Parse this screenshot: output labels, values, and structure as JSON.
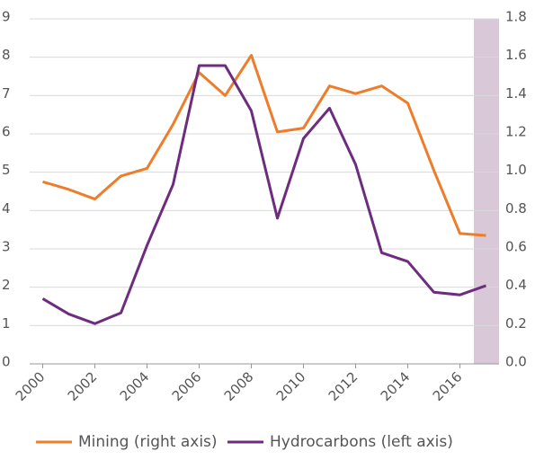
{
  "chart_data": {
    "type": "line",
    "x": [
      2000,
      2001,
      2002,
      2003,
      2004,
      2005,
      2006,
      2007,
      2008,
      2009,
      2010,
      2011,
      2012,
      2013,
      2014,
      2015,
      2016,
      2017
    ],
    "xlim": [
      1999.5,
      2017.5
    ],
    "xticks": [
      2000,
      2002,
      2004,
      2006,
      2008,
      2010,
      2012,
      2014,
      2016
    ],
    "ylim": [
      0,
      9
    ],
    "yticks": [
      0,
      1,
      2,
      3,
      4,
      5,
      6,
      7,
      8,
      9
    ],
    "y2lim": [
      0,
      1.8
    ],
    "y2ticks": [
      {
        "value": 0,
        "label": "0.0"
      },
      0.2,
      0.4,
      0.6,
      0.8,
      {
        "value": 1,
        "label": "1.0"
      },
      1.2,
      1.4,
      1.6,
      1.8
    ],
    "grid": true,
    "legend": "bottom",
    "series": [
      {
        "name": "Mining (right axis)",
        "color": "#ee7d2b",
        "axis": "y2",
        "values": [
          0.95,
          0.91,
          0.86,
          0.98,
          1.02,
          1.25,
          1.52,
          1.4,
          1.61,
          1.21,
          1.23,
          1.45,
          1.41,
          1.45,
          1.36,
          1.01,
          0.68,
          0.67
        ]
      },
      {
        "name": "Hydrocarbons (left axis)",
        "color": "#6e2c7f",
        "values": [
          1.7,
          1.3,
          1.05,
          1.33,
          3.09,
          4.68,
          7.78,
          7.78,
          6.6,
          3.8,
          5.88,
          6.67,
          5.2,
          2.9,
          2.67,
          1.87,
          1.8,
          2.04
        ]
      }
    ]
  }
}
